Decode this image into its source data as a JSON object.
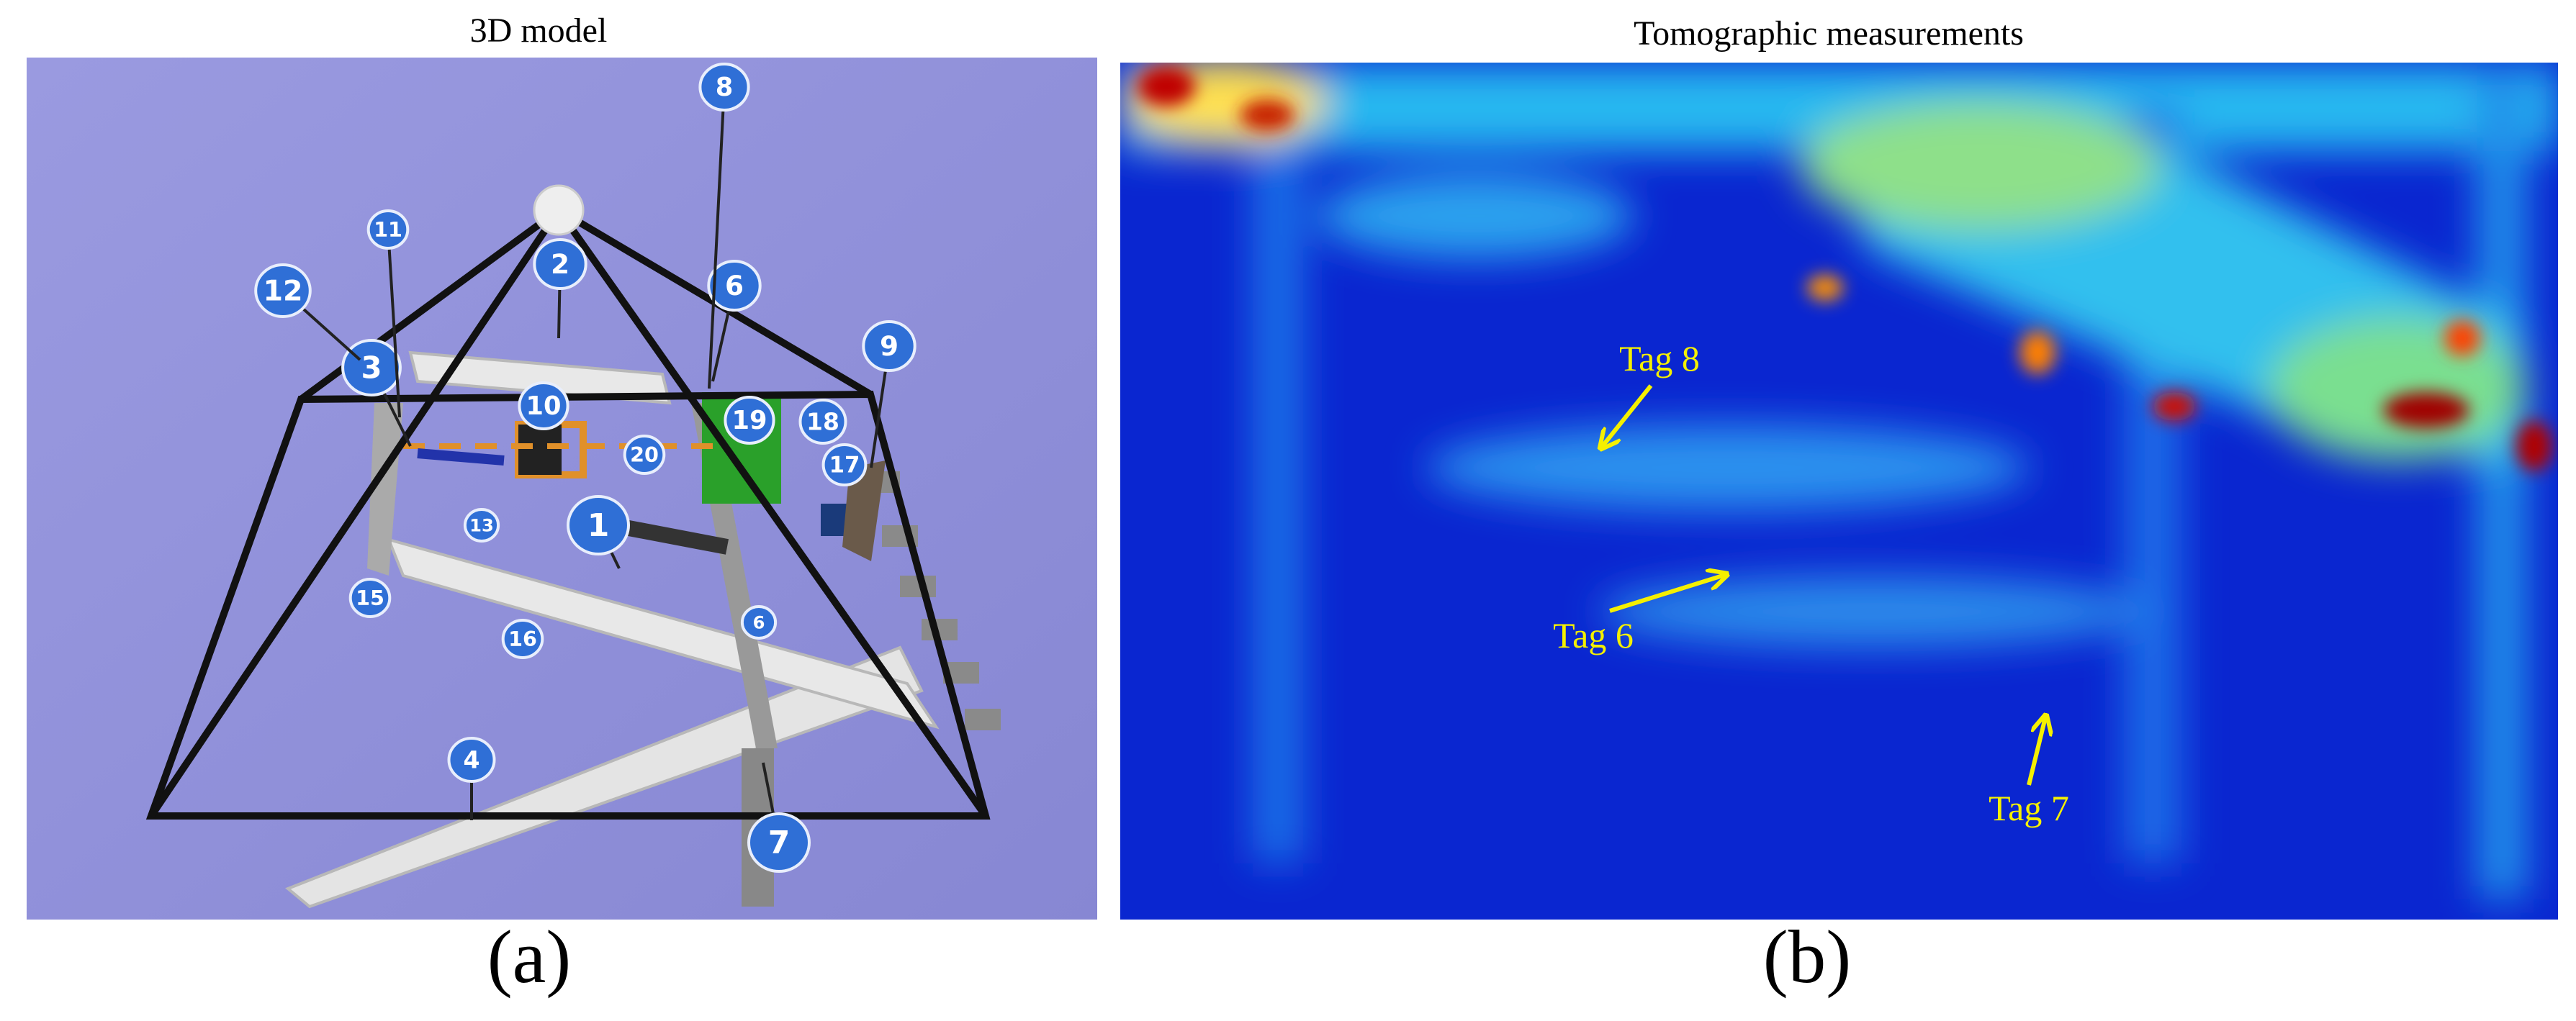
{
  "left_panel": {
    "title": "3D model",
    "caption": "(a)",
    "tags": [
      "1",
      "2",
      "3",
      "4",
      "6",
      "6",
      "7",
      "8",
      "9",
      "10",
      "11",
      "12",
      "13",
      "15",
      "16",
      "17",
      "18",
      "19",
      "20"
    ]
  },
  "right_panel": {
    "title": "Tomographic measurements",
    "caption": "(b)",
    "annotations": [
      "Tag 8",
      "Tag 6",
      "Tag 7"
    ]
  }
}
